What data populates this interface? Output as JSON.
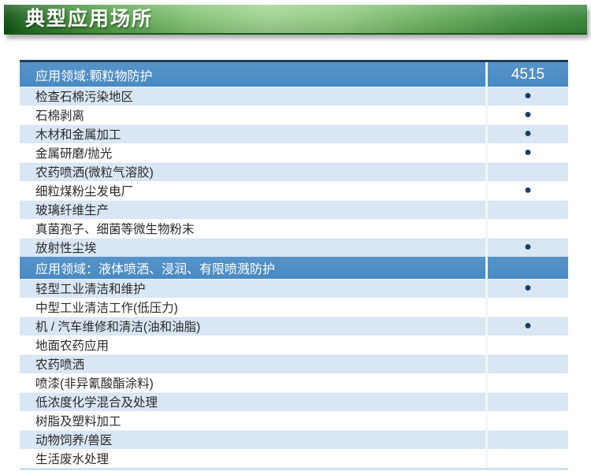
{
  "page_title": {
    "label": "典型应用场所"
  },
  "colors": {
    "banner_green_dark": "#0f4f0f",
    "banner_green_light": "#9dd28f",
    "header_blue": "#4e8ec6",
    "row_alt_blue": "#d9e6f3",
    "row_white": "#ffffff",
    "bullet_navy": "#1b3c63",
    "table_top_border_navy": "#1c3a5e",
    "row_text": "#2b2b2b"
  },
  "table": {
    "product_column_header": "4515",
    "bullet_symbol": "●",
    "sections": [
      {
        "header": "应用领域:颗粒物防护",
        "show_product_header": true,
        "rows": [
          {
            "label": "检查石棉污染地区",
            "marked": true
          },
          {
            "label": "石棉剥离",
            "marked": true
          },
          {
            "label": "木材和金属加工",
            "marked": true
          },
          {
            "label": "金属研磨/抛光",
            "marked": true
          },
          {
            "label": "农药喷洒(微粒气溶胶)",
            "marked": false
          },
          {
            "label": "细粒煤粉尘发电厂",
            "marked": true
          },
          {
            "label": "玻璃纤维生产",
            "marked": false
          },
          {
            "label": "真菌孢子、细菌等微生物粉末",
            "marked": false
          },
          {
            "label": "放射性尘埃",
            "marked": true
          }
        ]
      },
      {
        "header": "应用领域：液体喷洒、浸润、有限喷溅防护",
        "show_product_header": false,
        "rows": [
          {
            "label": "轻型工业清洁和维护",
            "marked": true
          },
          {
            "label": "中型工业清洁工作(低压力)",
            "marked": false
          },
          {
            "label": "机 / 汽车维修和清洁(油和油脂)",
            "marked": true
          },
          {
            "label": "地面农药应用",
            "marked": false
          },
          {
            "label": "农药喷洒",
            "marked": false
          },
          {
            "label": "喷漆(非异氰酸酯涂料)",
            "marked": false
          },
          {
            "label": "低浓度化学混合及处理",
            "marked": false
          },
          {
            "label": "树脂及塑料加工",
            "marked": false
          },
          {
            "label": "动物饲养/兽医",
            "marked": false
          },
          {
            "label": "生活废水处理",
            "marked": false
          }
        ]
      }
    ]
  }
}
